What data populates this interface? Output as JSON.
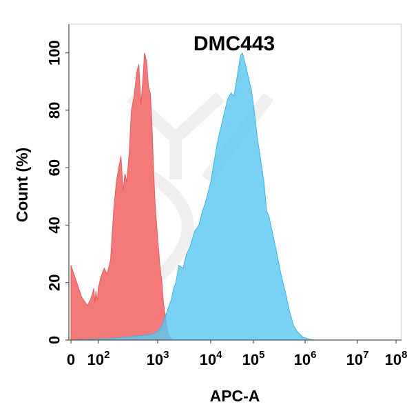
{
  "chart_data": {
    "type": "area",
    "title": "DMC443",
    "xlabel": "APC-A",
    "ylabel": "Count  (%)",
    "ylim": [
      0,
      110
    ],
    "x_scale": "biexponential",
    "y_ticks": [
      "0",
      "20",
      "40",
      "60",
      "80",
      "100"
    ],
    "x_ticks": [
      {
        "value": 0,
        "base": "0",
        "exp": ""
      },
      {
        "value": 100,
        "base": "10",
        "exp": "2"
      },
      {
        "value": 1000,
        "base": "10",
        "exp": "3"
      },
      {
        "value": 10000,
        "base": "10",
        "exp": "4"
      },
      {
        "value": 100000,
        "base": "10",
        "exp": "5"
      },
      {
        "value": 1000000,
        "base": "10",
        "exp": "6"
      },
      {
        "value": 10000000,
        "base": "10",
        "exp": "7"
      },
      {
        "value": 100000000,
        "base": "10",
        "exp": "8"
      }
    ],
    "series": [
      {
        "color": "#f47a7a",
        "stroke": "#e25a5a",
        "x": [
          0,
          5,
          15,
          25,
          35,
          45,
          55,
          65,
          75,
          85,
          95,
          110,
          125,
          140,
          160,
          180,
          200,
          220,
          240,
          260,
          280,
          300,
          330,
          360,
          400,
          440,
          480,
          520,
          560,
          600,
          650,
          700,
          750,
          800,
          850,
          900,
          1000,
          1100,
          1200,
          1300,
          1400,
          1500,
          1600,
          1700,
          1800,
          2000
        ],
        "y": [
          26,
          15,
          12,
          14,
          16,
          18,
          13,
          17,
          15,
          14,
          18,
          22,
          25,
          23,
          28,
          45,
          55,
          60,
          64,
          52,
          58,
          55,
          65,
          80,
          85,
          93,
          96,
          82,
          90,
          100,
          97,
          88,
          86,
          75,
          60,
          48,
          35,
          26,
          20,
          12,
          8,
          4,
          2,
          1,
          0.5,
          0
        ]
      },
      {
        "color": "#5bc8f0",
        "stroke": "#3fb3e0",
        "x": [
          0,
          150,
          300,
          500,
          800,
          1000,
          1200,
          1500,
          1800,
          2000,
          2200,
          2500,
          3000,
          3500,
          4000,
          5000,
          6000,
          7000,
          8000,
          10000,
          12000,
          14000,
          16000,
          20000,
          25000,
          30000,
          35000,
          40000,
          45000,
          50000,
          55000,
          60000,
          70000,
          80000,
          90000,
          100000,
          120000,
          140000,
          160000,
          180000,
          200000,
          250000,
          300000,
          350000,
          400000,
          500000,
          600000,
          700000,
          800000,
          900000,
          1000000,
          1200000,
          1500000
        ],
        "y": [
          0,
          0.5,
          1,
          1.5,
          2,
          3,
          5,
          10,
          14,
          18,
          20,
          26,
          25,
          30,
          32,
          38,
          40,
          45,
          48,
          55,
          62,
          68,
          72,
          78,
          84,
          86,
          85,
          90,
          95,
          99,
          100,
          98,
          94,
          90,
          87,
          82,
          70,
          62,
          55,
          45,
          43,
          35,
          28,
          22,
          18,
          10,
          5,
          3,
          2,
          1,
          0.8,
          0.3,
          0
        ]
      }
    ]
  }
}
